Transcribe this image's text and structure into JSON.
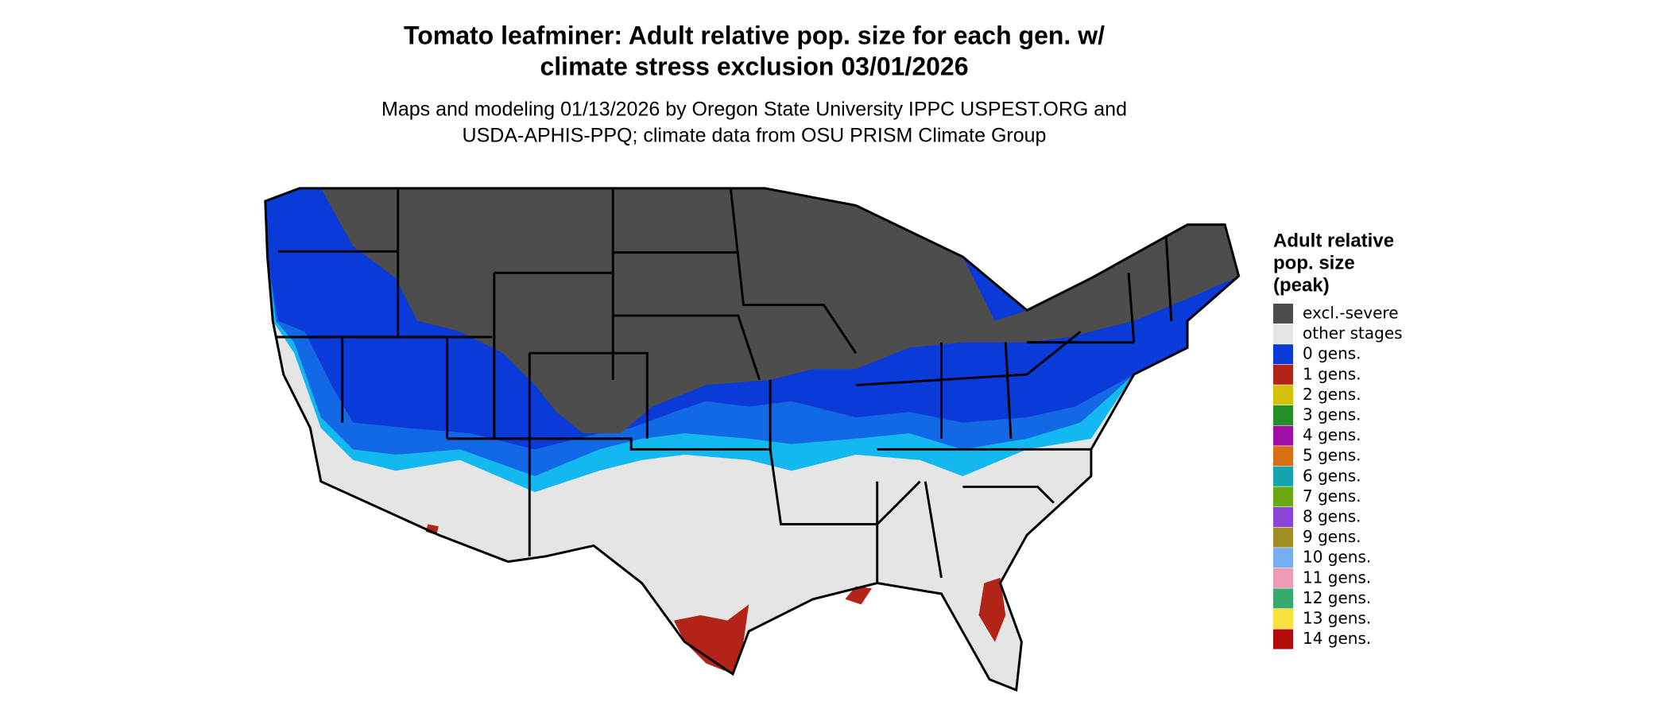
{
  "title": [
    "Tomato leafminer: Adult relative pop. size for each gen. w/",
    "climate stress exclusion 03/01/2026"
  ],
  "subtitle": [
    "Maps and modeling 01/13/2026 by Oregon State University IPPC USPEST.ORG and",
    "USDA-APHIS-PPQ; climate data from OSU PRISM Climate Group"
  ],
  "legend": {
    "title": [
      "Adult relative",
      "pop. size",
      "(peak)"
    ],
    "items": [
      {
        "label": "excl.-severe",
        "color": "#4d4d4d"
      },
      {
        "label": "other stages",
        "color": "#e5e5e5"
      },
      {
        "label": "0 gens.",
        "color": "#0a3ad8"
      },
      {
        "label": "1 gens.",
        "color": "#b22318"
      },
      {
        "label": "2 gens.",
        "color": "#d6c10a"
      },
      {
        "label": "3 gens.",
        "color": "#248f24"
      },
      {
        "label": "4 gens.",
        "color": "#a10fa6"
      },
      {
        "label": "5 gens.",
        "color": "#d96f14"
      },
      {
        "label": "6 gens.",
        "color": "#14a4ad"
      },
      {
        "label": "7 gens.",
        "color": "#6aa814"
      },
      {
        "label": "8 gens.",
        "color": "#8a46d8"
      },
      {
        "label": "9 gens.",
        "color": "#a38e26"
      },
      {
        "label": "10 gens.",
        "color": "#77aef2"
      },
      {
        "label": "11 gens.",
        "color": "#ef9bb3"
      },
      {
        "label": "12 gens.",
        "color": "#36ab6e"
      },
      {
        "label": "13 gens.",
        "color": "#f9e03a"
      },
      {
        "label": "14 gens.",
        "color": "#b00a0a"
      }
    ]
  }
}
